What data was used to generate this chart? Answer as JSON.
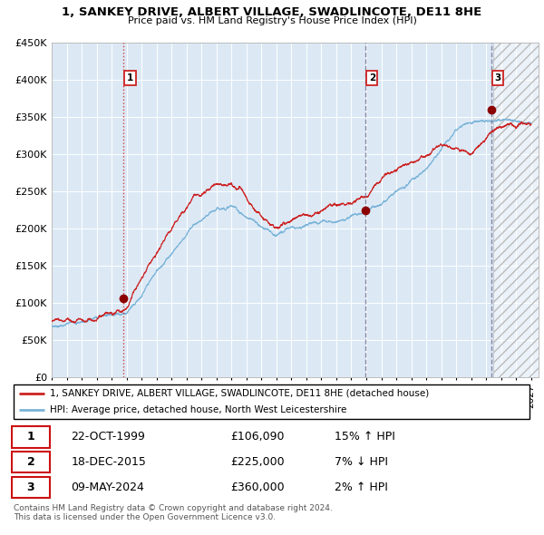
{
  "title1": "1, SANKEY DRIVE, ALBERT VILLAGE, SWADLINCOTE, DE11 8HE",
  "title2": "Price paid vs. HM Land Registry's House Price Index (HPI)",
  "ylim": [
    0,
    450000
  ],
  "yticks": [
    0,
    50000,
    100000,
    150000,
    200000,
    250000,
    300000,
    350000,
    400000,
    450000
  ],
  "ytick_labels": [
    "£0",
    "£50K",
    "£100K",
    "£150K",
    "£200K",
    "£250K",
    "£300K",
    "£350K",
    "£400K",
    "£450K"
  ],
  "xlim_start": 1995.0,
  "xlim_end": 2027.5,
  "bg_color": "#dce9f5",
  "hatch_region_start": 2024.5,
  "hpi_line_color": "#7ab3d8",
  "price_line_color": "#cc2222",
  "sale_marker_color": "#8b0000",
  "sale1_year": 1999.81,
  "sale1_price": 106090,
  "sale2_year": 2015.96,
  "sale2_price": 225000,
  "sale3_year": 2024.36,
  "sale3_price": 360000,
  "legend_line1": "1, SANKEY DRIVE, ALBERT VILLAGE, SWADLINCOTE, DE11 8HE (detached house)",
  "legend_line2": "HPI: Average price, detached house, North West Leicestershire",
  "table_rows": [
    {
      "num": "1",
      "date": "22-OCT-1999",
      "price": "£106,090",
      "hpi": "15% ↑ HPI"
    },
    {
      "num": "2",
      "date": "18-DEC-2015",
      "price": "£225,000",
      "hpi": "7% ↓ HPI"
    },
    {
      "num": "3",
      "date": "09-MAY-2024",
      "price": "£360,000",
      "hpi": "2% ↑ HPI"
    }
  ],
  "footnote1": "Contains HM Land Registry data © Crown copyright and database right 2024.",
  "footnote2": "This data is licensed under the Open Government Licence v3.0."
}
